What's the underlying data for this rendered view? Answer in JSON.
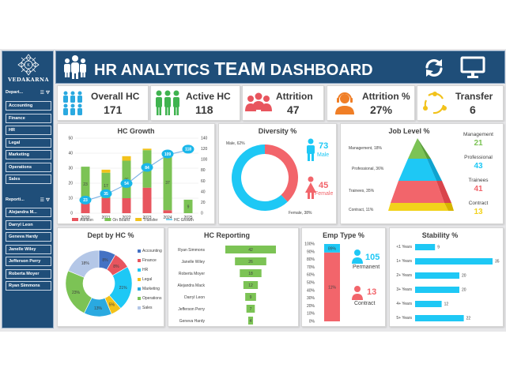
{
  "brand": {
    "name": "VEDAKARNA"
  },
  "header": {
    "title_pre": "HR ANALYTICS ",
    "title_big": "TEAM",
    "title_post": " DASHBOARD"
  },
  "icons": {
    "team": "team-icon",
    "refresh": "refresh-icon",
    "monitor": "monitor-icon"
  },
  "slicers": {
    "department": {
      "label": "Depart...",
      "items": [
        "Accounting",
        "Finance",
        "HR",
        "Legal",
        "Marketing",
        "Operations",
        "Sales"
      ]
    },
    "reporting": {
      "label": "Reporti...",
      "items": [
        "Alejandra M...",
        "Darryl Leon",
        "Geneva Hardy",
        "Janelle Wiley",
        "Jefferson Perry",
        "Roberta Moyer",
        "Ryan Simmons"
      ]
    }
  },
  "kpis": [
    {
      "label": "Overall HC",
      "value": "171",
      "color": "#2aa9e0"
    },
    {
      "label": "Active HC",
      "value": "118",
      "color": "#3fb34f"
    },
    {
      "label": "Attrition",
      "value": "47",
      "color": "#e8555e"
    },
    {
      "label": "Attrition %",
      "value": "27%",
      "color": "#f07e26"
    },
    {
      "label": "Transfer",
      "value": "6",
      "color": "#f2c21b"
    }
  ],
  "hc_growth": {
    "title": "HC Growth",
    "categories": [
      "2020",
      "2021",
      "2022",
      "2023",
      "2024",
      "2025"
    ],
    "series": [
      {
        "name": "Attrition",
        "color": "#e8555e",
        "values": [
          8,
          10,
          10,
          17,
          2,
          0
        ]
      },
      {
        "name": "On Board",
        "color": "#7cc355",
        "values": [
          23,
          17,
          25,
          25,
          37,
          9
        ]
      },
      {
        "name": "Transfer",
        "color": "#f2c21b",
        "values": [
          0,
          2,
          3,
          1,
          0,
          0
        ]
      },
      {
        "name": "HC Growth",
        "color": "#1ab7ea",
        "values": [
          23,
          35,
          54,
          84,
          109,
          118
        ]
      }
    ],
    "bar_labels": [
      "23",
      "17",
      "25",
      "25",
      "37",
      "9"
    ],
    "y_left_ticks": [
      "0",
      "10",
      "20",
      "30",
      "40",
      "50"
    ],
    "y_right_ticks": [
      "0",
      "20",
      "40",
      "60",
      "80",
      "100",
      "120",
      "140"
    ]
  },
  "diversity": {
    "title": "Diversity %",
    "male_pct_label": "Male, 62%",
    "female_pct_label": "Female, 38%",
    "male_pct": 62,
    "male_count": "73",
    "male_label": "Male",
    "female_count": "45",
    "female_label": "Female",
    "male_color": "#1ec8f5",
    "female_color": "#f2656b"
  },
  "job_level": {
    "title": "Job Level %",
    "slices": [
      {
        "label": "Management, 18%",
        "color": "#7cc355"
      },
      {
        "label": "Professional, 36%",
        "color": "#1ec8f5"
      },
      {
        "label": "Trainees, 35%",
        "color": "#f2656b"
      },
      {
        "label": "Contract, 11%",
        "color": "#f2d21b"
      }
    ],
    "counts": [
      {
        "label": "Management",
        "value": "21",
        "color": "#7cc355"
      },
      {
        "label": "Professional",
        "value": "43",
        "color": "#1ec8f5"
      },
      {
        "label": "Trainees",
        "value": "41",
        "color": "#f2656b"
      },
      {
        "label": "Contract",
        "value": "13",
        "color": "#f2d21b"
      }
    ]
  },
  "dept_hc": {
    "title": "Dept by HC %",
    "slices": [
      {
        "name": "Accounting",
        "pct": 8,
        "label": "8%",
        "color": "#4472c4"
      },
      {
        "name": "Finance",
        "pct": 8,
        "label": "8%",
        "color": "#e8555e"
      },
      {
        "name": "HR",
        "pct": 21,
        "label": "21%",
        "color": "#1ec8f5"
      },
      {
        "name": "Legal",
        "pct": 5,
        "label": "5%",
        "color": "#f2c21b"
      },
      {
        "name": "Marketing",
        "pct": 13,
        "label": "13%",
        "color": "#2aa9e0"
      },
      {
        "name": "Operations",
        "pct": 23,
        "label": "23%",
        "color": "#7cc355"
      },
      {
        "name": "Sales",
        "pct": 18,
        "label": "18%",
        "color": "#b4c7e7"
      }
    ]
  },
  "hc_reporting": {
    "title": "HC Reporting",
    "rows": [
      {
        "name": "Ryan Simmons",
        "value": 42
      },
      {
        "name": "Janelle Wiley",
        "value": 26
      },
      {
        "name": "Roberta Moyer",
        "value": 18
      },
      {
        "name": "Alejandra Mack",
        "value": 12
      },
      {
        "name": "Darryl Leon",
        "value": 9
      },
      {
        "name": "Jefferson Perry",
        "value": 7
      },
      {
        "name": "Geneva Hardy",
        "value": 4
      }
    ],
    "color": "#7cc355"
  },
  "emp_type": {
    "title": "Emp Type %",
    "ticks": [
      "0%",
      "10%",
      "20%",
      "30%",
      "40%",
      "50%",
      "60%",
      "70%",
      "80%",
      "90%",
      "100%"
    ],
    "permanent_pct": 89,
    "permanent_label": "89%",
    "contract_label": "11%",
    "permanent_count": "105",
    "permanent_name": "Permanent",
    "contract_count": "13",
    "contract_name": "Contract",
    "permanent_color": "#1ec8f5",
    "contract_color": "#f2656b"
  },
  "stability": {
    "title": "Stability %",
    "rows": [
      {
        "label": "<1 Years",
        "value": 9
      },
      {
        "label": "1+ Years",
        "value": 35
      },
      {
        "label": "2+ Years",
        "value": 20
      },
      {
        "label": "3+ Years",
        "value": 20
      },
      {
        "label": "4+ Years",
        "value": 12
      },
      {
        "label": "5+ Years",
        "value": 22
      }
    ],
    "color": "#1ec8f5"
  }
}
